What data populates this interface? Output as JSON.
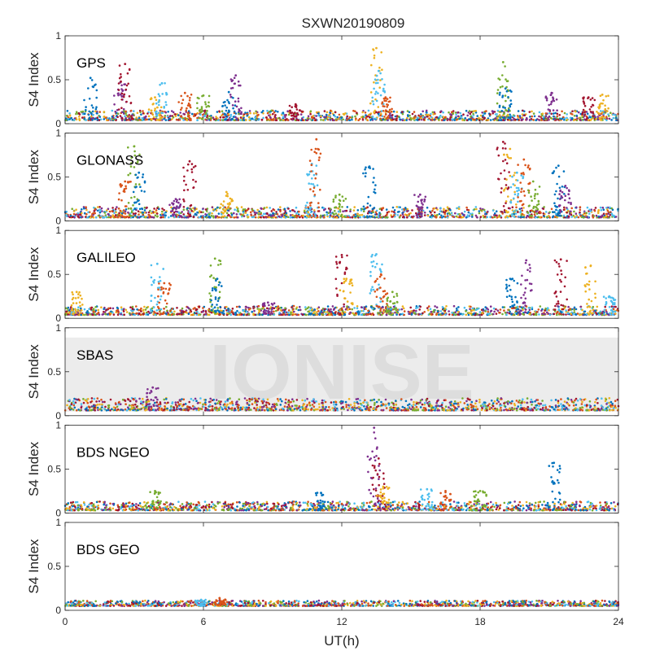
{
  "chart_data": {
    "type": "scatter",
    "title": "SXWN20190809",
    "xlabel": "UT(h)",
    "ylabel": "S4 Index",
    "xlim": [
      0,
      24
    ],
    "ylim": [
      0,
      1
    ],
    "x_ticks": [
      0,
      6,
      12,
      18,
      24
    ],
    "y_ticks": [
      0,
      0.5,
      1
    ],
    "watermark": "IONISE",
    "colors": [
      "#0072BD",
      "#D95319",
      "#EDB120",
      "#7E2F8E",
      "#77AC30",
      "#4DBEEE",
      "#A2142F"
    ],
    "panels": [
      {
        "name": "GPS",
        "baseline": [
          0.04,
          0.15
        ],
        "peaks": [
          [
            1.1,
            0.52
          ],
          [
            2.4,
            0.47
          ],
          [
            2.6,
            0.68
          ],
          [
            3.9,
            0.3
          ],
          [
            4.2,
            0.46
          ],
          [
            5.2,
            0.35
          ],
          [
            6.0,
            0.32
          ],
          [
            7.1,
            0.36
          ],
          [
            7.4,
            0.55
          ],
          [
            10.0,
            0.22
          ],
          [
            13.5,
            0.86
          ],
          [
            13.6,
            0.6
          ],
          [
            13.9,
            0.3
          ],
          [
            19.0,
            0.7
          ],
          [
            19.1,
            0.4
          ],
          [
            21.1,
            0.35
          ],
          [
            22.7,
            0.3
          ],
          [
            23.3,
            0.33
          ]
        ]
      },
      {
        "name": "GLONASS",
        "baseline": [
          0.04,
          0.16
        ],
        "peaks": [
          [
            2.6,
            0.45
          ],
          [
            3.0,
            0.85
          ],
          [
            3.2,
            0.55
          ],
          [
            4.8,
            0.25
          ],
          [
            5.4,
            0.68
          ],
          [
            7.0,
            0.33
          ],
          [
            10.7,
            0.65
          ],
          [
            10.9,
            0.93
          ],
          [
            11.9,
            0.3
          ],
          [
            13.2,
            0.62
          ],
          [
            15.4,
            0.3
          ],
          [
            19.0,
            0.9
          ],
          [
            19.3,
            0.82
          ],
          [
            19.6,
            0.55
          ],
          [
            19.9,
            0.7
          ],
          [
            20.3,
            0.45
          ],
          [
            21.4,
            0.63
          ],
          [
            21.7,
            0.4
          ]
        ]
      },
      {
        "name": "GALILEO",
        "baseline": [
          0.04,
          0.14
        ],
        "peaks": [
          [
            0.5,
            0.3
          ],
          [
            4.0,
            0.62
          ],
          [
            4.3,
            0.4
          ],
          [
            6.5,
            0.68
          ],
          [
            6.6,
            0.45
          ],
          [
            8.8,
            0.18
          ],
          [
            12.0,
            0.72
          ],
          [
            12.2,
            0.45
          ],
          [
            13.5,
            0.73
          ],
          [
            13.7,
            0.5
          ],
          [
            14.2,
            0.3
          ],
          [
            19.4,
            0.45
          ],
          [
            20.0,
            0.66
          ],
          [
            21.5,
            0.67
          ],
          [
            22.8,
            0.6
          ],
          [
            23.6,
            0.25
          ]
        ]
      },
      {
        "name": "SBAS",
        "baseline": [
          0.06,
          0.2
        ],
        "peaks": [
          [
            3.8,
            0.32
          ]
        ]
      },
      {
        "name": "BDS NGEO",
        "baseline": [
          0.03,
          0.13
        ],
        "peaks": [
          [
            3.9,
            0.25
          ],
          [
            11.1,
            0.23
          ],
          [
            13.4,
            0.97
          ],
          [
            13.6,
            0.62
          ],
          [
            13.8,
            0.3
          ],
          [
            15.7,
            0.27
          ],
          [
            16.5,
            0.25
          ],
          [
            18.0,
            0.25
          ],
          [
            21.2,
            0.57
          ]
        ]
      },
      {
        "name": "BDS GEO",
        "baseline": [
          0.05,
          0.11
        ],
        "peaks": [
          [
            5.9,
            0.12
          ],
          [
            6.7,
            0.14
          ]
        ]
      }
    ]
  }
}
